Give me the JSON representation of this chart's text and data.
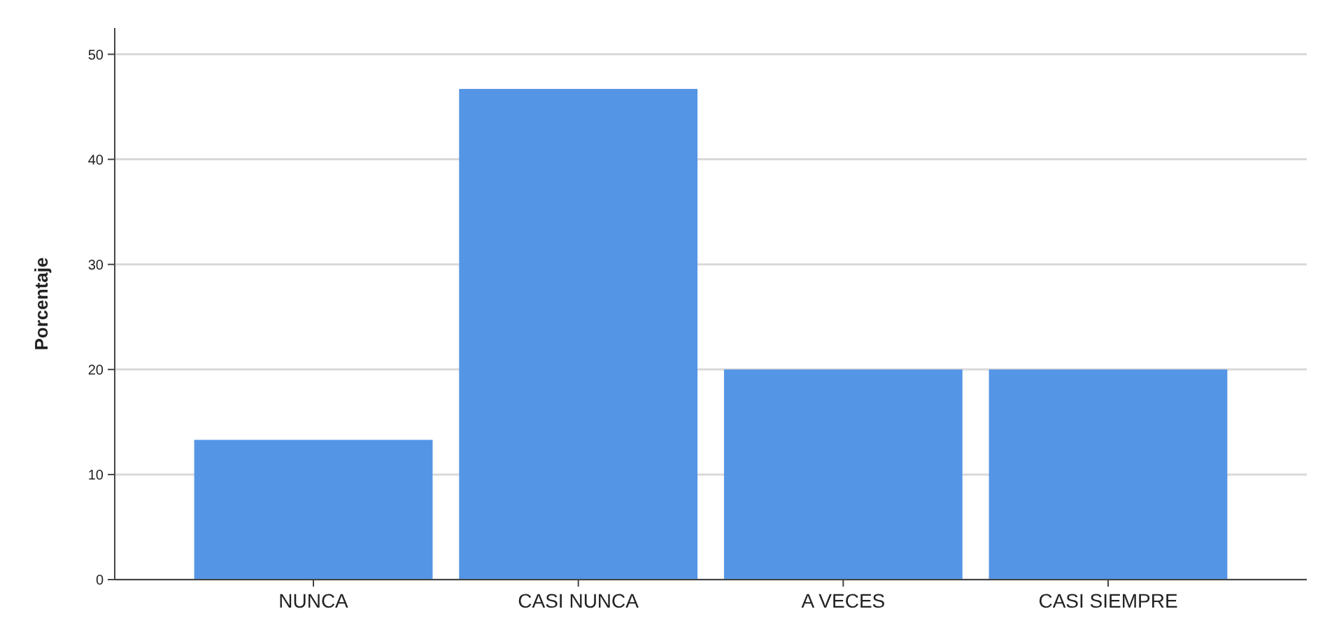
{
  "chart_data": {
    "type": "bar",
    "ylabel": "Porcentaje",
    "categories": [
      "NUNCA",
      "CASI NUNCA",
      "A VECES",
      "CASI SIEMPRE"
    ],
    "values": [
      13.3,
      46.7,
      20,
      20
    ],
    "color": "#5595e5",
    "ylim": [
      0,
      52.5
    ],
    "yticks": [
      0,
      10,
      20,
      30,
      40,
      50
    ],
    "grid": "y"
  }
}
